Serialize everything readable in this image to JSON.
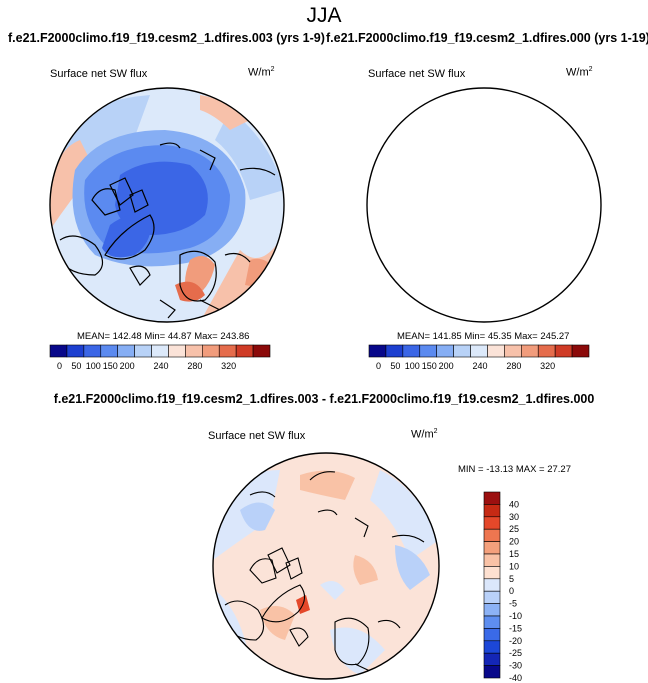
{
  "title": "JJA",
  "colors": {
    "coast": "#000000",
    "scale11": [
      "#08088a",
      "#1d3fd0",
      "#3b66e6",
      "#5b8af0",
      "#86aef4",
      "#b8d2f7",
      "#dce9fa",
      "#fbe3d8",
      "#f7c1aa",
      "#f19c7c",
      "#e56c4c",
      "#cf3b26",
      "#8b0a0a"
    ],
    "diff_scale": [
      "#08088a",
      "#1426b6",
      "#1c47d8",
      "#3a6ae8",
      "#5e8ef0",
      "#8cb2f5",
      "#b9d1f9",
      "#dbe7fb",
      "#fde0d0",
      "#f9c2a6",
      "#f4a07c",
      "#ee7650",
      "#e4482a",
      "#c62a14",
      "#9c1010"
    ]
  },
  "chart_data": [
    {
      "type": "heatmap",
      "projection": "north-polar-stereographic",
      "title": "f.e21.F2000climo.f19_f19.cesm2_1.dfires.003 (yrs 1-9)",
      "variable": "Surface net SW flux",
      "units": "W/m",
      "units_sup": "2",
      "stats": "MEAN= 142.48   Min=  44.87   Max= 243.86",
      "colorbar": {
        "orientation": "horizontal",
        "levels": [
          "0",
          "50",
          "100",
          "150",
          "200",
          "240",
          "280",
          "320"
        ]
      }
    },
    {
      "type": "heatmap",
      "projection": "north-polar-stereographic",
      "title": "f.e21.F2000climo.f19_f19.cesm2_1.dfires.000 (yrs 1-19)",
      "variable": "Surface net SW flux",
      "units": "W/m",
      "units_sup": "2",
      "stats": "MEAN= 141.85   Min=  45.35   Max= 245.27",
      "colorbar": {
        "orientation": "horizontal",
        "levels": [
          "0",
          "50",
          "100",
          "150",
          "200",
          "240",
          "280",
          "320"
        ]
      }
    },
    {
      "type": "heatmap",
      "projection": "north-polar-stereographic",
      "title": "f.e21.F2000climo.f19_f19.cesm2_1.dfires.003 - f.e21.F2000climo.f19_f19.cesm2_1.dfires.000",
      "variable": "Surface net SW flux",
      "units": "W/m",
      "units_sup": "2",
      "stats": "MIN = -13.13 MAX =  27.27",
      "colorbar": {
        "orientation": "vertical",
        "levels": [
          "40",
          "30",
          "25",
          "20",
          "15",
          "10",
          "5",
          "0",
          "-5",
          "-10",
          "-15",
          "-20",
          "-25",
          "-30",
          "-40"
        ]
      }
    }
  ]
}
